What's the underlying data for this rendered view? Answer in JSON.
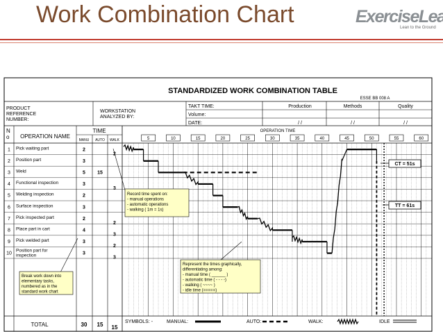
{
  "slide": {
    "title": "Work Combination  Chart",
    "logo": {
      "main": "ExerciseLean",
      "tagline": "Lean to the Ground"
    }
  },
  "sheet": {
    "title": "STANDARDIZED WORK COMBINATION TABLE",
    "ref_note": "ESSE BB 008 A",
    "product_reference_label": "PRODUCT\nREFERENCE\nNUMBER:",
    "workstation_label": "WORKSTATION\nANALYZED BY:",
    "takt_time_label": "TAKT TIME:",
    "volume_label": "Volume:",
    "date_label": "DATE:",
    "approvals": [
      "Production",
      "Methods",
      "Quality"
    ],
    "date_slashes": [
      "/       /",
      "/       /",
      "/       /"
    ],
    "col_no": "N\no",
    "col_operation": "OPERATION NAME",
    "col_time": "TIME",
    "col_manual": "MANU",
    "col_auto": "AUTO",
    "col_walk": "WALK",
    "operation_time_label": "OPERATION TIME",
    "scale": [
      "5",
      "10",
      "15",
      "20",
      "25",
      "30",
      "35",
      "40",
      "45",
      "50",
      "55",
      "60"
    ],
    "total_label": "TOTAL",
    "total_manual": "30",
    "total_auto": "15",
    "total_walk": "15",
    "ct_label": "CT = 51s",
    "tt_label": "TT = 61s",
    "symbols": {
      "label": "SYMBOLS: -",
      "manual": "MANUAL:",
      "auto": "AUTO:",
      "walk": "WALK:",
      "idle": "IDLE"
    }
  },
  "operations": [
    {
      "no": "1",
      "name": "Pick waiting part",
      "manual": "2",
      "auto": "",
      "walk": "2"
    },
    {
      "no": "2",
      "name": "Position part",
      "manual": "3",
      "auto": "",
      "walk": ""
    },
    {
      "no": "3",
      "name": "Weld",
      "manual": "5",
      "auto": "15",
      "walk": ""
    },
    {
      "no": "4",
      "name": "Functional inspection",
      "manual": "3",
      "auto": "",
      "walk": "3"
    },
    {
      "no": "5",
      "name": "Welding inspection",
      "manual": "2",
      "auto": "",
      "walk": ""
    },
    {
      "no": "6",
      "name": "Surface inspection",
      "manual": "3",
      "auto": "",
      "walk": ""
    },
    {
      "no": "7",
      "name": "Pick inspected part",
      "manual": "2",
      "auto": "",
      "walk": "2"
    },
    {
      "no": "8",
      "name": "Place part in cart",
      "manual": "4",
      "auto": "",
      "walk": "3"
    },
    {
      "no": "9",
      "name": "Pick welded part",
      "manual": "3",
      "auto": "",
      "walk": "2"
    },
    {
      "no": "10",
      "name": "Position part for\ninspection",
      "manual": "3",
      "auto": "",
      "walk": "3"
    }
  ],
  "callouts": {
    "record": "Record time spent on:\n- manual operations\n- automatic operations\n- walking ( 1m = 1s)",
    "breakdown": "Break work down into\nelementary tasks,\nnumbered as in the\nstandard work chart",
    "represent": "Represent the times graphically,\ndifferentiating among:\n- manual time (  ______  )\n- automatic time ( - - - -)\n- walking ( ~~~~ )\n- idle time (=====)"
  },
  "colors": {
    "title": "#7a4a2c",
    "stripe": "#c0392b",
    "callout_bg": "#ffffc6",
    "ink": "#000000"
  }
}
